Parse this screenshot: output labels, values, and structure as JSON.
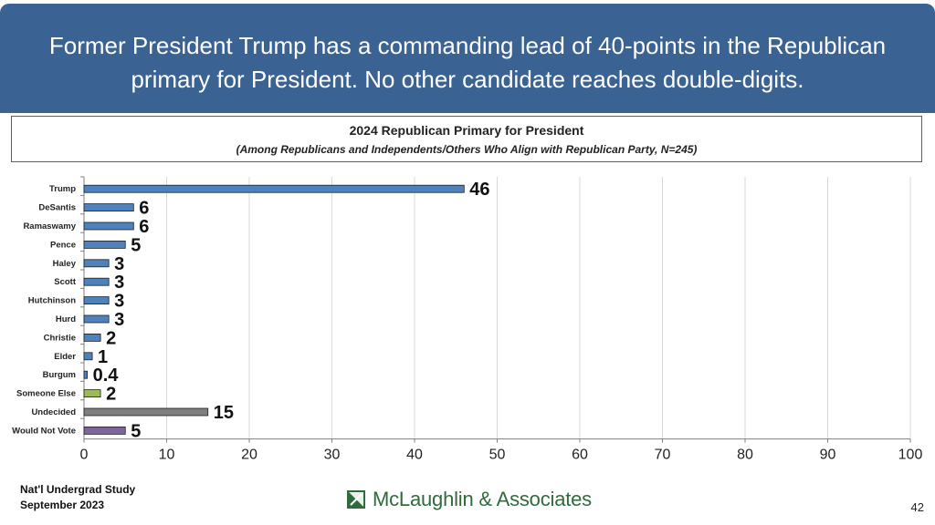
{
  "header": {
    "line1": "Former President Trump has a commanding lead of 40-points in the Republican",
    "line2": "primary for President. No other candidate reaches double-digits."
  },
  "chart_data": {
    "type": "bar",
    "orientation": "horizontal",
    "title": "2024 Republican Primary for President",
    "subtitle": "(Among Republicans and Independents/Others Who Align with Republican Party, N=245)",
    "categories": [
      "Trump",
      "DeSantis",
      "Ramaswamy",
      "Pence",
      "Haley",
      "Scott",
      "Hutchinson",
      "Hurd",
      "Christie",
      "Elder",
      "Burgum",
      "Someone Else",
      "Undecided",
      "Would Not Vote"
    ],
    "values": [
      46,
      6,
      6,
      5,
      3,
      3,
      3,
      3,
      2,
      1,
      0.4,
      2,
      15,
      5
    ],
    "labels": [
      "46",
      "6",
      "6",
      "5",
      "3",
      "3",
      "3",
      "3",
      "2",
      "1",
      "0.4",
      "2",
      "15",
      "5"
    ],
    "bar_colors": [
      "#4f81bd",
      "#4f81bd",
      "#4f81bd",
      "#4f81bd",
      "#4f81bd",
      "#4f81bd",
      "#4f81bd",
      "#4f81bd",
      "#4f81bd",
      "#4f81bd",
      "#4f81bd",
      "#9bbb59",
      "#7f7f7f",
      "#8064a2"
    ],
    "xlim": [
      0,
      100
    ],
    "xticks": [
      0,
      10,
      20,
      30,
      40,
      50,
      60,
      70,
      80,
      90,
      100
    ],
    "grid": true
  },
  "footer": {
    "study": "Nat'l Undergrad Study",
    "date": "September 2023",
    "logo_text": "McLaughlin & Associates",
    "page_number": "42"
  },
  "colors": {
    "header_band": "#3a6293",
    "logo_green": "#2f6b3c"
  }
}
